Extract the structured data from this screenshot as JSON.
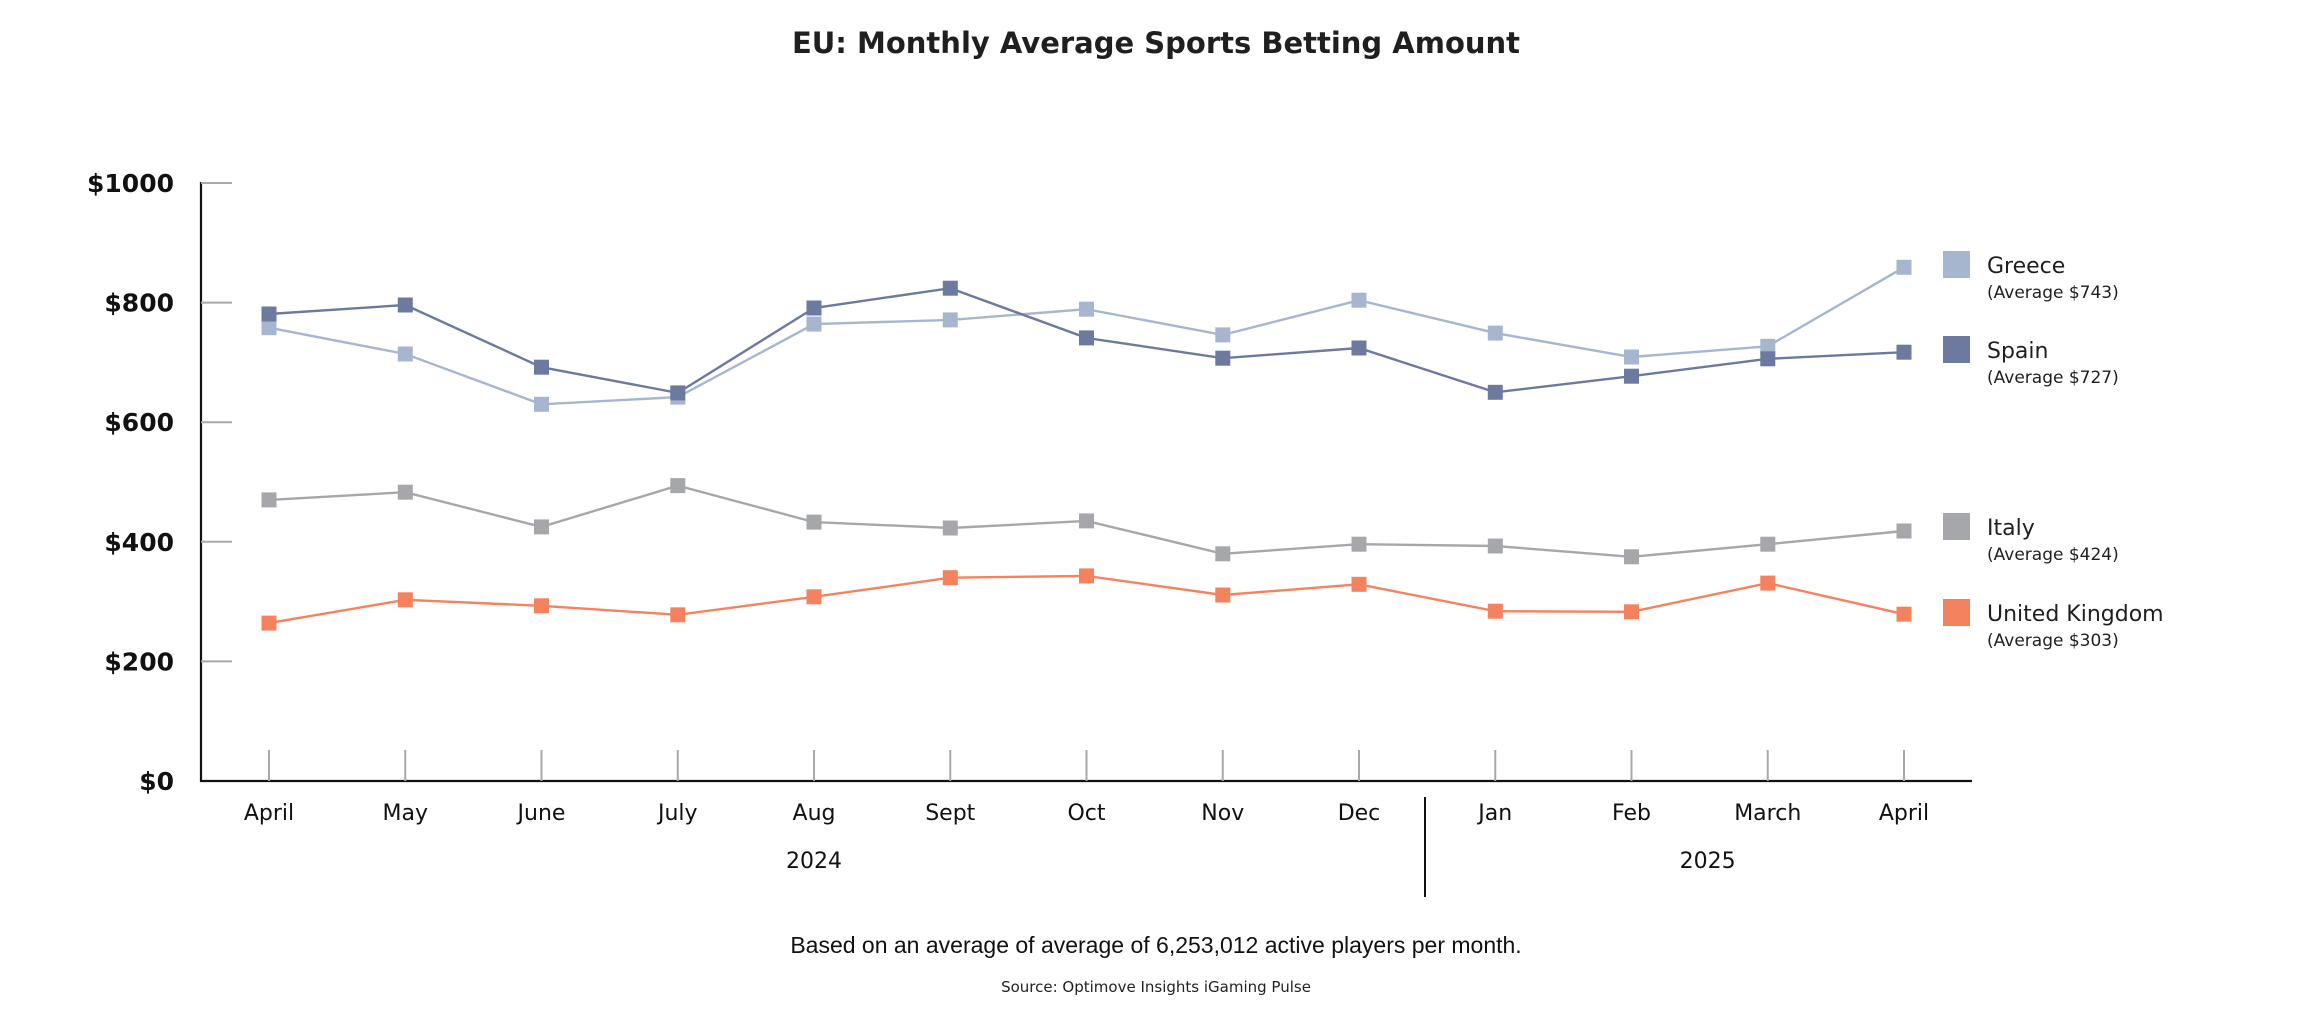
{
  "chart_data": {
    "type": "line",
    "title": "EU: Monthly Average Sports Betting Amount",
    "xlabel": "",
    "ylabel": "",
    "ylim": [
      0,
      1000
    ],
    "grid": false,
    "legend_position": "right",
    "x": [
      "April",
      "May",
      "June",
      "July",
      "Aug",
      "Sept",
      "Oct",
      "Nov",
      "Dec",
      "Jan",
      "Feb",
      "March",
      "April"
    ],
    "year_groups": [
      {
        "label": "2024",
        "start": 0,
        "end": 8
      },
      {
        "label": "2025",
        "start": 9,
        "end": 12
      }
    ],
    "yticks": [
      {
        "value": 0,
        "label": "$0"
      },
      {
        "value": 200,
        "label": "$200"
      },
      {
        "value": 400,
        "label": "$400"
      },
      {
        "value": 600,
        "label": "$600"
      },
      {
        "value": 800,
        "label": "$800"
      },
      {
        "value": 1000,
        "label": "$1000"
      }
    ],
    "series": [
      {
        "name": "Greece",
        "average_label": "(Average $743)",
        "color": "#a7b6cf",
        "values": [
          758,
          714,
          630,
          642,
          764,
          771,
          789,
          746,
          804,
          749,
          709,
          727,
          859
        ]
      },
      {
        "name": "Spain",
        "average_label": "(Average $727)",
        "color": "#6b7a9e",
        "values": [
          781,
          796,
          692,
          649,
          791,
          824,
          741,
          707,
          724,
          650,
          677,
          706,
          717
        ]
      },
      {
        "name": "Italy",
        "average_label": "(Average $424)",
        "color": "#a6a7aa",
        "values": [
          470,
          483,
          425,
          494,
          433,
          423,
          435,
          380,
          396,
          393,
          375,
          396,
          418
        ]
      },
      {
        "name": "United Kingdom",
        "average_label": "(Average $303)",
        "color": "#f4825f",
        "values": [
          264,
          303,
          293,
          278,
          308,
          340,
          343,
          311,
          329,
          284,
          283,
          331,
          279
        ]
      }
    ],
    "footnote": "Based on an average of average of 6,253,012 active players per month.",
    "source": "Source: Optimove Insights iGaming Pulse"
  }
}
